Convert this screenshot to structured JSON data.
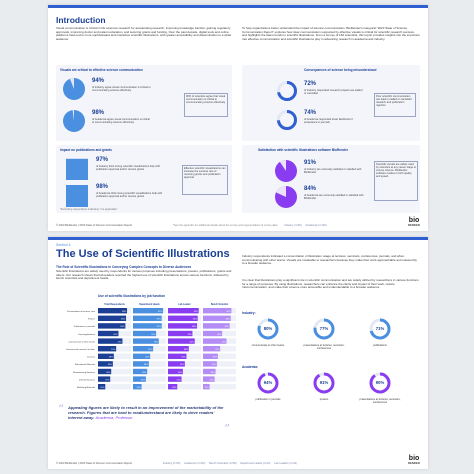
{
  "page1": {
    "title": "Introduction",
    "intro_left": "Visual communication is critical in life sciences research for accelerating research, improving knowledge transfer, gaining regulatory approvals, improving doctor and patient education, and securing grants and funding. Over the past decade, digital tools and online platforms have led to more sophisticated and interactive scientific illustrations, with greater accessibility and dissemination to a wider audience.",
    "intro_right": "To help organizations better understand the impact of science communication, BioRender's inaugural \"2023 State of Science Communication Report\" explores how clear communication supported by effective visuals is critical for scientific research success, and highlights the latest trends in scientific illustrations. From a survey of 162 scientists, this report provides insights into the important role effective communication and scientific illustrations play in advancing research in academia and industry.",
    "sec_visuals": "Visuals are critical to effective science communication",
    "v1_pct": "94%",
    "v1_text": "of Industry agree visual communication is critical to communicating science effectively",
    "v2_pct": "98%",
    "v2_text": "of Academia agree visual communication is critical to communicating science effectively",
    "v_note": "96% of scientists agree that visual communication is critical to communicating science effectively",
    "sec_consequences": "Consequences of science being misunderstood",
    "c1_pct": "72%",
    "c1_text": "of Industry responded research projects are stalled or cancelled",
    "c2_pct": "74%",
    "c2_text": "of Academia responded lower likelihood of acceptance in journals",
    "c_note": "Poor scientific communication can lead to stalled or cancelled research and publication rejection",
    "sec_pubs": "Impact on publications and grants",
    "p1_pct": "97%",
    "p1_text": "of Industry think strong scientific visualizations help with publication approval and/or receive grants",
    "p2_pct": "98%",
    "p2_text": "of Academia think strong scientific visualizations help with publication approval and/or receive grants",
    "p_note": "Effective scientific visualizations can increase the success rate of receiving grants and publication approval",
    "p_footnote": "*Excluding respondents indicating \"not applicable\"",
    "sec_satisfaction": "Satisfaction with scientific illustrations software BioRender",
    "s1_pct": "91%",
    "s1_text": "of Industry are extremely satisfied or satisfied with BioRender",
    "s2_pct": "84%",
    "s2_text": "of Academia are extremely satisfied or satisfied with BioRender",
    "s_note": "Scientific visuals are widely used by scientists at any career stage to convey science. BioRender software resides in both quality and speed.",
    "footer": "© 2023 BioRender | 2023 State of Science Communication Report",
    "footer_mid": "*See the appendix for additional details about the survey and segmentations of survey data",
    "legend_industry": "Industry (n=60)",
    "legend_academia": "Academia (n=102)",
    "logo": "bio",
    "logo_sub": "RENDER"
  },
  "page2": {
    "section": "Section 4",
    "title": "The Use of Scientific Illustrations",
    "subhead": "The Role of Scientific Illustrations in Conveying Complex Concepts to Diverse Audiences",
    "body_left": "Scientific illustrations are widely used by respondents for various purposes including presentations, posters, publications, grants and others. Our research shows that lab leaders reported the highest use of scientific illustrations across various functions, followed by bench scientists and department heads.",
    "chart_title": "Use of scientific illustrations by job function",
    "body_right_1": "Industry respondents indicated a concentration of illustration usage at lectures, seminars, conferences, journals, and when communicating with other teams. Visuals are invaluable to researchers because they make their work approachable and noteworthy to a broader audience.",
    "body_right_2": "It is clear that illustrations play a significant role in scientific communication and are widely utilized by researchers in various functions for a range of purposes. By using illustrations, researchers can enhance the clarity and impact of their work, reduce miscommunication, and make their science more accessible and understandable to a broader audience.",
    "industry_label": "Industry:",
    "academia_label": "Academia:",
    "industry_rings": [
      {
        "value": "80%",
        "label": "communicate to other teams",
        "fraction": 0.8
      },
      {
        "value": "77%",
        "label": "presentations at lectures, seminars, conferences",
        "fraction": 0.77
      },
      {
        "value": "71%",
        "label": "publications",
        "fraction": 0.71
      }
    ],
    "academia_rings": [
      {
        "value": "94%",
        "label": "publication in journals",
        "fraction": 0.94
      },
      {
        "value": "91%",
        "label": "posters",
        "fraction": 0.91
      },
      {
        "value": "90%",
        "label": "presentations at lectures, seminars, conferences",
        "fraction": 0.9
      }
    ],
    "quote": "Appealing figures are likely to result in an improvement of the marketability of the research. Figures that are hard to read/understand are likely to drive readers' interest away.",
    "quote_attr": "Academia, Professor",
    "footer": "© 2023 BioRender | 2023 State of Science Communication Report",
    "legend": [
      "Industry (n=60)",
      "Academia (n=102)",
      "Bench Scientists (n=59)",
      "Department Heads (n=23)",
      "Lab Leaders (n=43)"
    ],
    "logo": "bio",
    "logo_sub": "RENDER"
  },
  "chart_data": {
    "type": "bar",
    "title": "Use of scientific illustrations by job function",
    "categories": [
      "Presentations at lectures, seminars & conferences",
      "Posters",
      "Publications in journals",
      "Grant applications",
      "Communicate to other teams",
      "Communicate research to other teams",
      "Lectures",
      "Educational Materials",
      "Brainstorming Sessions",
      "Internal Sessions",
      "Marketing Materials"
    ],
    "series": [
      {
        "name": "Total Respondents",
        "values": [
          88,
          85,
          83,
          62,
          74,
          55,
          48,
          45,
          40,
          37,
          22
        ]
      },
      {
        "name": "Department Heads",
        "values": [
          91,
          87,
          87,
          70,
          78,
          61,
          52,
          48,
          43,
          39,
          26
        ]
      },
      {
        "name": "Lab Leader",
        "values": [
          93,
          90,
          88,
          74,
          81,
          63,
          56,
          51,
          45,
          41,
          28
        ]
      },
      {
        "name": "Bench Scientist",
        "values": [
          86,
          84,
          81,
          58,
          71,
          52,
          45,
          42,
          38,
          35,
          20
        ]
      }
    ],
    "ylim": [
      0,
      100
    ]
  },
  "colors": {
    "accent": "#2f5fd0",
    "navy": "#1b3f94",
    "blue": "#4a8fe0",
    "purple": "#8a3df0",
    "light": "#e4e8f4"
  }
}
